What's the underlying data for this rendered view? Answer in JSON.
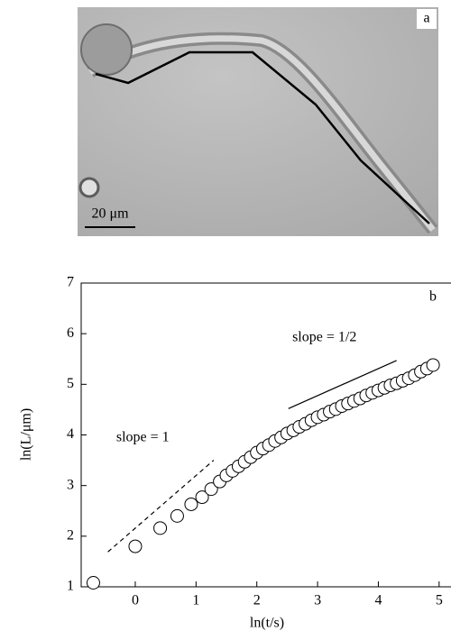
{
  "panel_a": {
    "label": "a",
    "scale_bar": "20 μm"
  },
  "chart_data": {
    "type": "scatter",
    "panel_label": "b",
    "x_label": "ln(t/s)",
    "y_label": "ln(L/μm)",
    "x": [
      -0.69,
      0,
      0.41,
      0.69,
      0.92,
      1.1,
      1.25,
      1.39,
      1.5,
      1.6,
      1.7,
      1.8,
      1.9,
      2.0,
      2.1,
      2.2,
      2.3,
      2.4,
      2.5,
      2.6,
      2.7,
      2.8,
      2.9,
      3.0,
      3.1,
      3.2,
      3.3,
      3.4,
      3.5,
      3.6,
      3.7,
      3.8,
      3.9,
      4.0,
      4.1,
      4.2,
      4.3,
      4.4,
      4.5,
      4.6,
      4.7,
      4.8,
      4.9
    ],
    "values": [
      1.08,
      1.8,
      2.16,
      2.4,
      2.63,
      2.77,
      2.93,
      3.08,
      3.2,
      3.29,
      3.38,
      3.47,
      3.56,
      3.65,
      3.73,
      3.8,
      3.88,
      3.95,
      4.03,
      4.09,
      4.16,
      4.22,
      4.29,
      4.35,
      4.4,
      4.46,
      4.51,
      4.57,
      4.62,
      4.67,
      4.72,
      4.78,
      4.83,
      4.88,
      4.93,
      4.98,
      5.02,
      5.07,
      5.12,
      5.18,
      5.25,
      5.31,
      5.38
    ],
    "reference_lines": [
      {
        "label": "slope = 1",
        "x": [
          -0.45,
          1.29
        ],
        "y": [
          1.69,
          3.5
        ],
        "dashed": true
      },
      {
        "label": "slope = 1/2",
        "x": [
          2.52,
          4.3
        ],
        "y": [
          4.52,
          5.47
        ],
        "dashed": false
      }
    ],
    "xlim": [
      -0.89,
      5.24
    ],
    "ylim": [
      1,
      7
    ],
    "xticks": [
      0,
      1,
      2,
      3,
      4,
      5
    ],
    "yticks": [
      1,
      2,
      3,
      4,
      5,
      6,
      7
    ]
  }
}
